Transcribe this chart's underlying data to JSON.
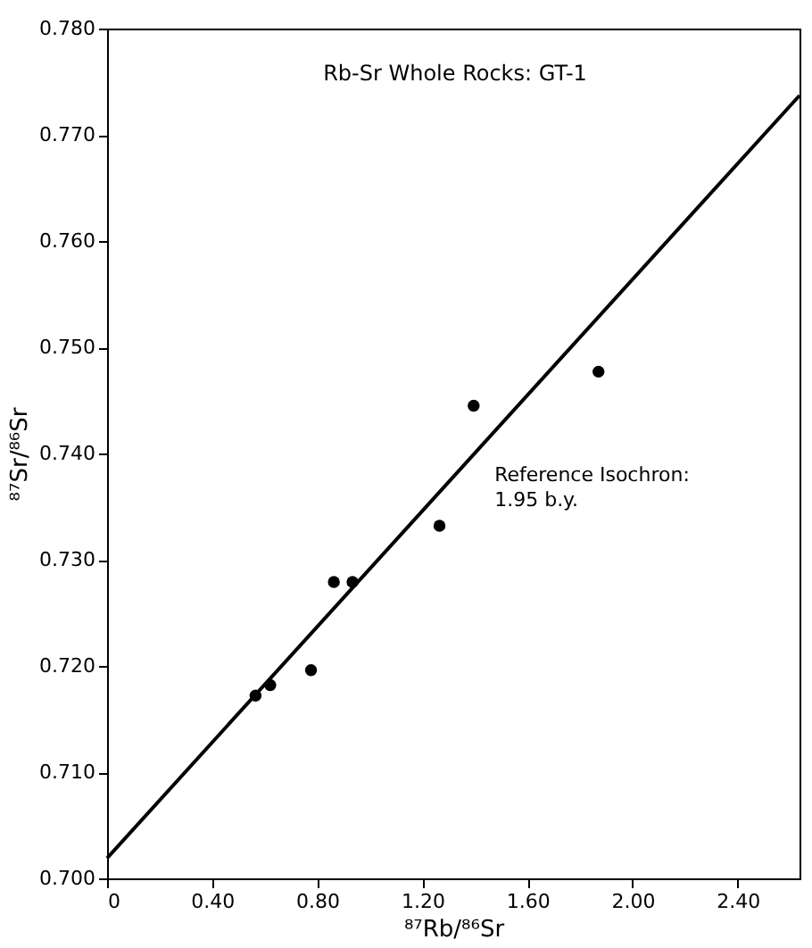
{
  "chart_data": {
    "type": "scatter",
    "title": "Rb-Sr Whole Rocks: GT-1",
    "xlabel": "⁸⁷Rb/⁸⁶Sr",
    "ylabel": "⁸⁷Sr/⁸⁶Sr",
    "series": [
      {
        "type": "scatter",
        "marker": "circle",
        "color": "#000000",
        "x": [
          0.565,
          0.621,
          0.776,
          0.863,
          0.934,
          1.265,
          1.395,
          1.87
        ],
        "values": [
          0.7172,
          0.7182,
          0.7196,
          0.7279,
          0.7279,
          0.7332,
          0.7445,
          0.7477
        ]
      },
      {
        "type": "line",
        "color": "#000000",
        "x": [
          0,
          2.635
        ],
        "values": [
          0.7019,
          0.7737
        ]
      }
    ],
    "xlim": [
      0,
      2.635
    ],
    "ylim": [
      0.7,
      0.78
    ],
    "xticks": [
      {
        "value": 0,
        "label": "0"
      },
      {
        "value": 0.4,
        "label": "0.40"
      },
      {
        "value": 0.8,
        "label": "0.80"
      },
      {
        "value": 1.2,
        "label": "1.20"
      },
      {
        "value": 1.6,
        "label": "1.60"
      },
      {
        "value": 2.0,
        "label": "2.00"
      },
      {
        "value": 2.4,
        "label": "2.40"
      }
    ],
    "yticks": [
      {
        "value": 0.7,
        "label": "0.700"
      },
      {
        "value": 0.71,
        "label": "0.710"
      },
      {
        "value": 0.72,
        "label": "0.720"
      },
      {
        "value": 0.73,
        "label": "0.730"
      },
      {
        "value": 0.74,
        "label": "0.740"
      },
      {
        "value": 0.75,
        "label": "0.750"
      },
      {
        "value": 0.76,
        "label": "0.760"
      },
      {
        "value": 0.77,
        "label": "0.770"
      },
      {
        "value": 0.78,
        "label": "0.780"
      }
    ],
    "annotations": [
      {
        "text": "Reference Isochron:\n1.95 b.y.",
        "x": 1.42,
        "y": 0.7396
      }
    ],
    "grid": false,
    "line_style": "solid"
  }
}
